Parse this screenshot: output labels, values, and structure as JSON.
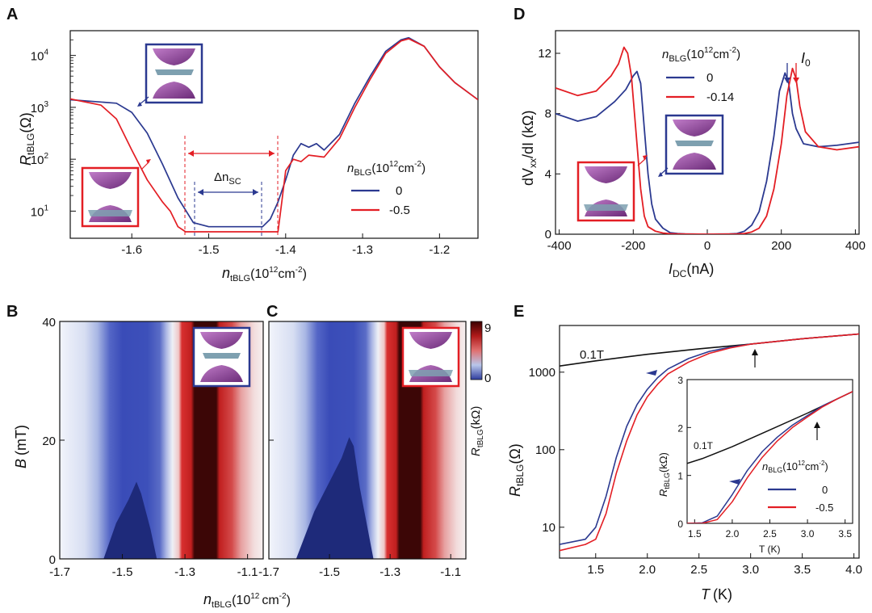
{
  "chart_data": [
    {
      "panel": "A",
      "type": "line",
      "yscale": "log",
      "xlabel_main": "n",
      "xlabel_sub": "tBLG",
      "xlabel_unit": "(10",
      "xlabel_exp": "12",
      "xlabel_end": "cm",
      "xlabel_exp2": "-2",
      "xlabel_close": ")",
      "ylabel_main": "R",
      "ylabel_sub": "tBLG",
      "ylabel_unit": "(Ω)",
      "xlim": [
        -1.68,
        -1.15
      ],
      "ylim": [
        3,
        30000
      ],
      "xticks": [
        -1.6,
        -1.5,
        -1.4,
        -1.3,
        -1.2
      ],
      "xtick_labels": [
        "-1.6",
        "-1.5",
        "-1.4",
        "-1.3",
        "-1.2"
      ],
      "yticks": [
        10,
        100,
        1000,
        10000
      ],
      "ytick_base": "10",
      "ytick_exps": [
        "1",
        "2",
        "3",
        "4"
      ],
      "legend_title_main": "n",
      "legend_title_sub": "BLG",
      "legend_title_unit": "(10",
      "legend_title_exp": "12",
      "legend_title_end": "cm",
      "legend_title_exp2": "-2",
      "legend_title_close": ")",
      "annotation_main": "Δn",
      "annotation_sub": "SC",
      "series": [
        {
          "name": "0",
          "color": "#2b3990",
          "x": [
            -1.68,
            -1.62,
            -1.6,
            -1.58,
            -1.56,
            -1.54,
            -1.52,
            -1.5,
            -1.48,
            -1.46,
            -1.44,
            -1.43,
            -1.42,
            -1.41,
            -1.4,
            -1.39,
            -1.38,
            -1.37,
            -1.36,
            -1.35,
            -1.33,
            -1.31,
            -1.29,
            -1.27,
            -1.25,
            -1.24,
            -1.22,
            -1.2,
            -1.18,
            -1.15
          ],
          "y": [
            1400,
            1200,
            800,
            320,
            80,
            18,
            6,
            5,
            5,
            5,
            5,
            5,
            7,
            15,
            40,
            120,
            200,
            170,
            200,
            150,
            300,
            1200,
            4000,
            12000,
            20000,
            22000,
            15000,
            6000,
            3000,
            1400
          ]
        },
        {
          "name": "-0.5",
          "color": "#e31e24",
          "x": [
            -1.68,
            -1.64,
            -1.62,
            -1.6,
            -1.58,
            -1.56,
            -1.55,
            -1.54,
            -1.53,
            -1.52,
            -1.5,
            -1.48,
            -1.46,
            -1.44,
            -1.42,
            -1.41,
            -1.405,
            -1.4,
            -1.39,
            -1.38,
            -1.37,
            -1.35,
            -1.33,
            -1.31,
            -1.29,
            -1.27,
            -1.25,
            -1.24,
            -1.22,
            -1.2,
            -1.18,
            -1.15
          ],
          "y": [
            1450,
            1100,
            600,
            150,
            40,
            15,
            10,
            5,
            4,
            4,
            4,
            4,
            4,
            4,
            4,
            4,
            15,
            60,
            100,
            90,
            120,
            110,
            250,
            1000,
            3500,
            11000,
            19000,
            21000,
            15000,
            6000,
            3000,
            1400
          ]
        }
      ]
    },
    {
      "panel": "D",
      "type": "line",
      "xlabel_main": "I",
      "xlabel_sub": "DC",
      "xlabel_unit": "(nA)",
      "ylabel_text": "dV",
      "ylabel_sub": "xx",
      "ylabel_end": "/dI (kΩ)",
      "xlim": [
        -410,
        410
      ],
      "ylim": [
        0,
        13.5
      ],
      "xticks": [
        -400,
        -200,
        0,
        200,
        400
      ],
      "xtick_labels": [
        "-400",
        "-200",
        "0",
        "200",
        "400"
      ],
      "yticks": [
        0,
        4,
        8,
        12
      ],
      "ytick_labels": [
        "0",
        "4",
        "8",
        "12"
      ],
      "legend_title_main": "n",
      "legend_title_sub": "BLG",
      "legend_title_unit": "(10",
      "legend_title_exp": "12",
      "legend_title_end": "cm",
      "legend_title_exp2": "-2",
      "legend_title_close": ")",
      "annotation_main": "I",
      "annotation_sub": "0",
      "series": [
        {
          "name": "0",
          "color": "#2b3990",
          "x": [
            -410,
            -350,
            -300,
            -250,
            -220,
            -200,
            -190,
            -180,
            -170,
            -160,
            -150,
            -140,
            -120,
            -100,
            -80,
            -60,
            0,
            60,
            80,
            100,
            120,
            140,
            160,
            180,
            195,
            210,
            220,
            230,
            240,
            260,
            300,
            350,
            410
          ],
          "y": [
            8,
            7.5,
            7.8,
            8.8,
            9.6,
            10.5,
            10.8,
            10,
            7,
            4,
            2,
            1,
            0.4,
            0.1,
            0.05,
            0.02,
            0,
            0.02,
            0.05,
            0.2,
            0.6,
            1.5,
            3.5,
            6.5,
            9.5,
            10.7,
            10,
            8,
            7,
            6,
            5.8,
            5.9,
            6.1
          ]
        },
        {
          "name": "-0.14",
          "color": "#e31e24",
          "x": [
            -410,
            -350,
            -300,
            -260,
            -240,
            -225,
            -215,
            -205,
            -190,
            -180,
            -170,
            -160,
            -140,
            -120,
            -100,
            -80,
            0,
            80,
            100,
            120,
            140,
            160,
            180,
            200,
            215,
            230,
            240,
            250,
            265,
            300,
            350,
            410
          ],
          "y": [
            9.7,
            9.2,
            9.5,
            10.5,
            11.3,
            12.4,
            12,
            10.5,
            6,
            3,
            1.2,
            0.5,
            0.2,
            0.08,
            0.03,
            0.02,
            0,
            0.02,
            0.05,
            0.15,
            0.4,
            1.2,
            3,
            6,
            9.2,
            11,
            10.3,
            8.5,
            6.8,
            5.8,
            5.6,
            5.8
          ]
        }
      ]
    },
    {
      "panel": "B",
      "type": "heatmap",
      "xlim": [
        -1.7,
        -1.05
      ],
      "ylim": [
        0,
        40
      ],
      "xticks": [
        -1.7,
        -1.5,
        -1.3,
        -1.1
      ],
      "xtick_labels": [
        "-1.7",
        "-1.5",
        "-1.3",
        "-1.1"
      ],
      "yticks": [
        0,
        20,
        40
      ],
      "ytick_labels": [
        "0",
        "20",
        "40"
      ],
      "ylabel_main": "B",
      "ylabel_unit": "(mT)",
      "color_min": 0,
      "color_max": 9
    },
    {
      "panel": "C",
      "type": "heatmap",
      "xlim": [
        -1.7,
        -1.05
      ],
      "ylim": [
        0,
        40
      ],
      "xticks": [
        -1.7,
        -1.5,
        -1.3,
        -1.1
      ],
      "xtick_labels": [
        "-1.7",
        "-1.5",
        "-1.3",
        "-1.1"
      ],
      "yticks": [
        0,
        20,
        40
      ],
      "colorbar_ticks": [
        "9",
        "0"
      ],
      "colorbar_label_main": "R",
      "colorbar_label_sub": "tBLG",
      "colorbar_label_unit": "(kΩ)"
    },
    {
      "panel": "E",
      "type": "line",
      "yscale": "log",
      "xlabel_main": "T",
      "xlabel_unit": "(K)",
      "ylabel_main": "R",
      "ylabel_sub": "tBLG",
      "ylabel_unit": "(Ω)",
      "xlim": [
        1.15,
        4.05
      ],
      "ylim": [
        4,
        4000
      ],
      "xticks": [
        1.5,
        2.0,
        2.5,
        3.0,
        3.5,
        4.0
      ],
      "xtick_labels": [
        "1.5",
        "2.0",
        "2.5",
        "3.0",
        "3.5",
        "4.0"
      ],
      "yticks": [
        10,
        100,
        1000
      ],
      "ytick_labels": [
        "10",
        "100",
        "1000"
      ],
      "annotation": "0.1T",
      "series": [
        {
          "name": "0.1T",
          "color": "#111111",
          "x": [
            1.15,
            1.5,
            2.0,
            2.5,
            3.0,
            3.5,
            4.05
          ],
          "y": [
            1200,
            1400,
            1700,
            2000,
            2300,
            2700,
            3100
          ]
        },
        {
          "name": "0",
          "color": "#2b3990",
          "x": [
            1.15,
            1.4,
            1.5,
            1.6,
            1.7,
            1.8,
            1.9,
            2.0,
            2.1,
            2.2,
            2.4,
            2.6,
            2.8,
            3.0,
            3.5,
            4.05
          ],
          "y": [
            6,
            7,
            10,
            25,
            80,
            200,
            380,
            600,
            850,
            1100,
            1500,
            1850,
            2100,
            2300,
            2700,
            3100
          ]
        },
        {
          "name": "-0.5",
          "color": "#e31e24",
          "x": [
            1.15,
            1.4,
            1.5,
            1.6,
            1.7,
            1.8,
            1.9,
            2.0,
            2.1,
            2.2,
            2.4,
            2.6,
            2.8,
            3.0,
            3.5,
            4.05
          ],
          "y": [
            5,
            6,
            7,
            15,
            50,
            130,
            280,
            480,
            700,
            950,
            1350,
            1750,
            2050,
            2300,
            2700,
            3100
          ]
        }
      ],
      "inset": {
        "xlim": [
          1.4,
          3.6
        ],
        "ylim": [
          0,
          3
        ],
        "xticks": [
          1.5,
          2.0,
          2.5,
          3.0,
          3.5
        ],
        "xtick_labels": [
          "1.5",
          "2.0",
          "2.5",
          "3.0",
          "3.5"
        ],
        "yticks": [
          0,
          1,
          2,
          3
        ],
        "ytick_labels": [
          "0",
          "1",
          "2",
          "3"
        ],
        "xlabel": "T (K)",
        "ylabel_main": "R",
        "ylabel_sub": "tBLG",
        "ylabel_unit": "(kΩ)",
        "annotation": "0.1T",
        "legend_title_main": "n",
        "legend_title_sub": "BLG",
        "legend_title_unit": "(10",
        "legend_title_exp": "12",
        "legend_title_end": "cm",
        "legend_title_exp2": "-2",
        "legend_title_close": ")",
        "series": [
          {
            "name": "0.1T",
            "color": "#111111",
            "x": [
              1.4,
              1.6,
              2.0,
              2.5,
              3.0,
              3.6
            ],
            "y": [
              1.25,
              1.35,
              1.6,
              1.95,
              2.3,
              2.75
            ]
          },
          {
            "name": "0",
            "color": "#2b3990",
            "x": [
              1.4,
              1.6,
              1.8,
              2.0,
              2.2,
              2.4,
              2.6,
              2.8,
              3.0,
              3.2,
              3.4,
              3.6
            ],
            "y": [
              0,
              0.01,
              0.15,
              0.6,
              1.1,
              1.5,
              1.8,
              2.05,
              2.25,
              2.45,
              2.6,
              2.75
            ]
          },
          {
            "name": "-0.5",
            "color": "#e31e24",
            "x": [
              1.4,
              1.6,
              1.8,
              2.0,
              2.2,
              2.4,
              2.6,
              2.8,
              3.0,
              3.2,
              3.4,
              3.6
            ],
            "y": [
              0,
              0.0,
              0.08,
              0.45,
              0.95,
              1.38,
              1.72,
              2.0,
              2.22,
              2.43,
              2.6,
              2.75
            ]
          }
        ]
      }
    }
  ],
  "panel_labels": [
    "A",
    "D",
    "B",
    "C",
    "E"
  ],
  "colors": {
    "blue": "#2b3990",
    "red": "#e31e24",
    "purple": "#8e3a95",
    "gray_blue": "#7ea0b0"
  }
}
